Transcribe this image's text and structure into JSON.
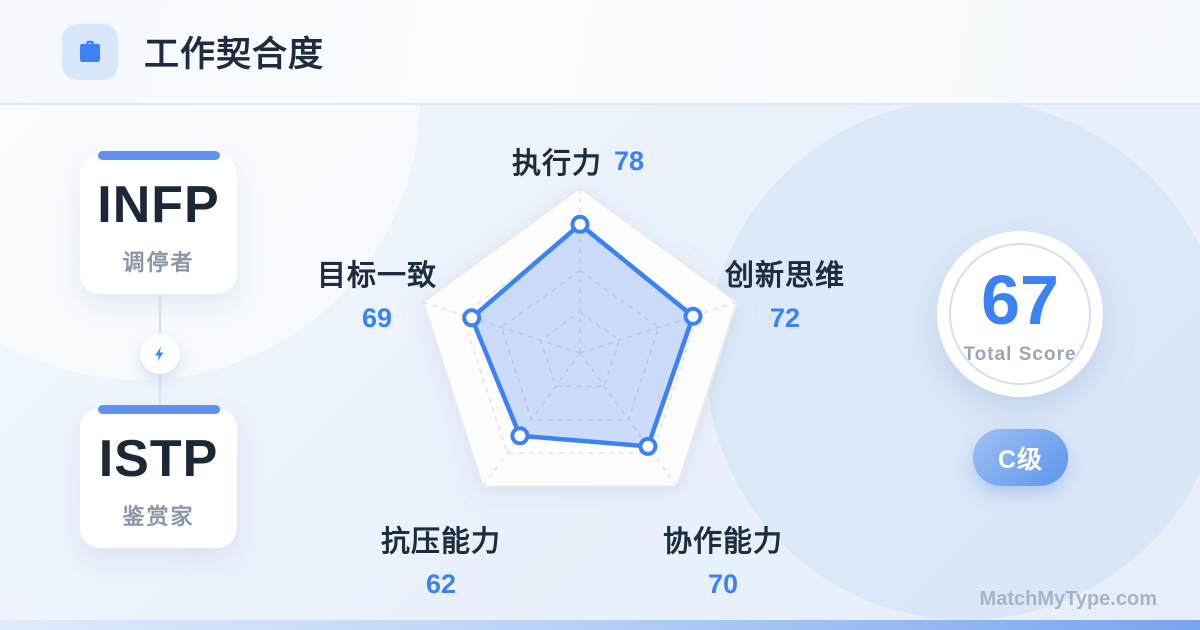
{
  "header": {
    "title": "工作契合度",
    "icon": "briefcase-icon"
  },
  "pair": {
    "left": {
      "type": "INFP",
      "alias": "调停者"
    },
    "right": {
      "type": "ISTP",
      "alias": "鉴赏家"
    },
    "connector_icon": "lightning-icon"
  },
  "chart_data": {
    "type": "radar",
    "categories": [
      "执行力",
      "创新思维",
      "协作能力",
      "抗压能力",
      "目标一致"
    ],
    "values": [
      78,
      72,
      70,
      62,
      69
    ],
    "max": 100,
    "grid_levels": [
      0.25,
      0.5,
      0.75,
      1
    ],
    "grid": "dashed-pentagons-with-spokes",
    "legend": "none",
    "colors": {
      "stroke": "#3b82f6",
      "fill": "rgba(91,141,239,0.30)",
      "grid_line": "#dfe3ea",
      "outer_stroke": "#e9ebef",
      "outer_fill": "#fdfdfe",
      "point_fill": "#ffffff"
    }
  },
  "score": {
    "value": "67",
    "label": "Total Score",
    "grade": "C级"
  },
  "watermark": "MatchMyType.com",
  "colors": {
    "accent_blue": "#3b82f6",
    "card_accent": "#5f92ee",
    "title_dark": "#1f2b3e",
    "muted_gray": "#8b96a7",
    "badge_gradient_start": "#9ec2f4",
    "badge_gradient_end": "#5d94ea",
    "bottom_bar_start": "#e0ebfc",
    "bottom_bar_end": "#78a5ef"
  }
}
